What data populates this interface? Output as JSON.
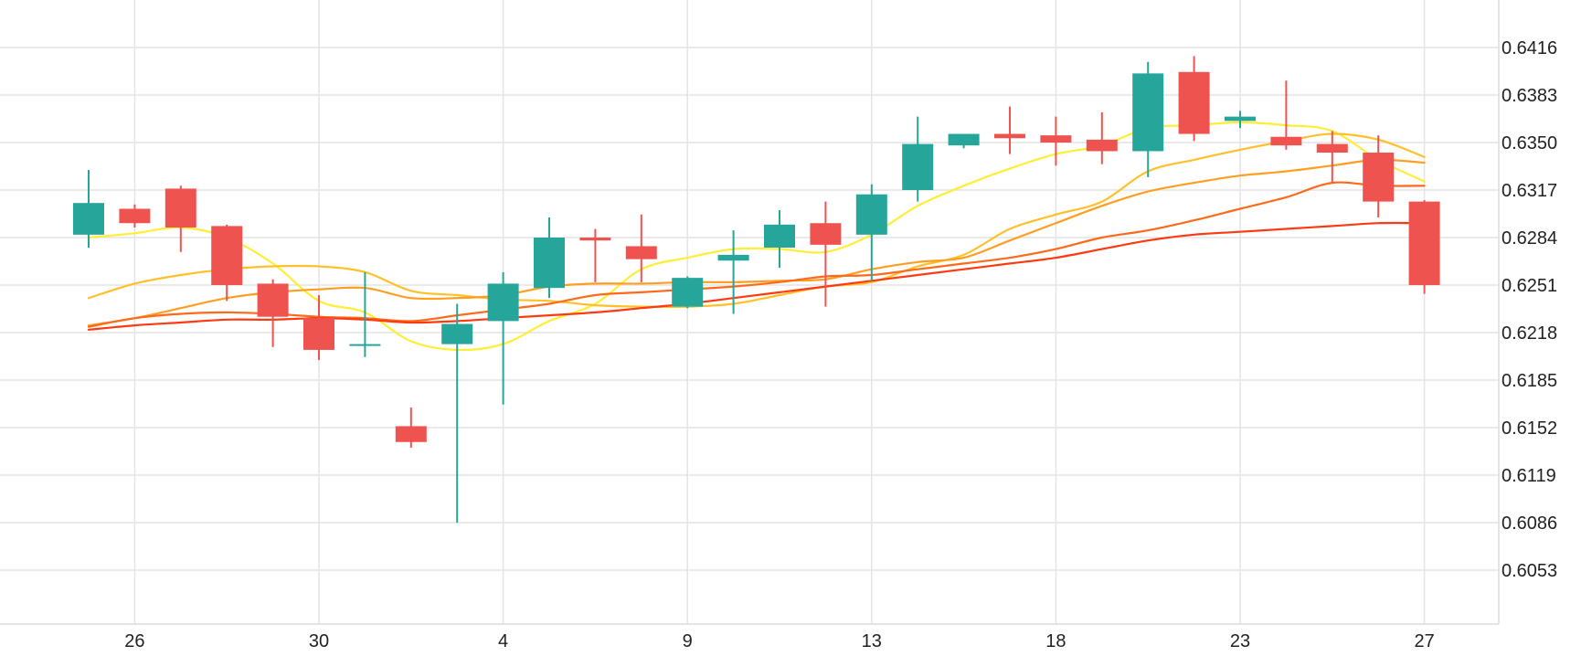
{
  "chart_data": {
    "type": "candlestick",
    "title": "",
    "xlabel": "",
    "ylabel": "",
    "ylim": [
      6010,
      6440
    ],
    "grid": true,
    "colors": {
      "up": "#26a69a",
      "down": "#ef5350",
      "grid": "#e4e4e4"
    },
    "x_ticks": [
      {
        "label": "26",
        "index": 1
      },
      {
        "label": "30",
        "index": 5
      },
      {
        "label": "4",
        "index": 9
      },
      {
        "label": "9",
        "index": 13
      },
      {
        "label": "13",
        "index": 17
      },
      {
        "label": "18",
        "index": 21
      },
      {
        "label": "23",
        "index": 25
      },
      {
        "label": "27",
        "index": 29
      }
    ],
    "y_ticks": [
      "0.6416",
      "0.6383",
      "0.6350",
      "0.6317",
      "0.6284",
      "0.6251",
      "0.6218",
      "0.6185",
      "0.6152",
      "0.6119",
      "0.6086",
      "0.6053"
    ],
    "candles": [
      {
        "o": 0.6286,
        "h": 0.6331,
        "l": 0.6277,
        "c": 0.6308
      },
      {
        "o": 0.6304,
        "h": 0.6307,
        "l": 0.6291,
        "c": 0.6294
      },
      {
        "o": 0.6318,
        "h": 0.632,
        "l": 0.6274,
        "c": 0.6291
      },
      {
        "o": 0.6292,
        "h": 0.6293,
        "l": 0.624,
        "c": 0.6251
      },
      {
        "o": 0.6252,
        "h": 0.6255,
        "l": 0.6208,
        "c": 0.6229
      },
      {
        "o": 0.6228,
        "h": 0.6244,
        "l": 0.6199,
        "c": 0.6206
      },
      {
        "o": 0.6209,
        "h": 0.626,
        "l": 0.6201,
        "c": 0.621
      },
      {
        "o": 0.6153,
        "h": 0.6166,
        "l": 0.6138,
        "c": 0.6142
      },
      {
        "o": 0.621,
        "h": 0.6238,
        "l": 0.6086,
        "c": 0.6224
      },
      {
        "o": 0.6226,
        "h": 0.626,
        "l": 0.6168,
        "c": 0.6252
      },
      {
        "o": 0.6249,
        "h": 0.6298,
        "l": 0.6242,
        "c": 0.6284
      },
      {
        "o": 0.6284,
        "h": 0.629,
        "l": 0.6253,
        "c": 0.6282
      },
      {
        "o": 0.6278,
        "h": 0.63,
        "l": 0.6253,
        "c": 0.6269
      },
      {
        "o": 0.6236,
        "h": 0.6257,
        "l": 0.6235,
        "c": 0.6256
      },
      {
        "o": 0.6268,
        "h": 0.6289,
        "l": 0.6231,
        "c": 0.6272
      },
      {
        "o": 0.6277,
        "h": 0.6303,
        "l": 0.6263,
        "c": 0.6293
      },
      {
        "o": 0.6294,
        "h": 0.6309,
        "l": 0.6236,
        "c": 0.6279
      },
      {
        "o": 0.6286,
        "h": 0.6321,
        "l": 0.6254,
        "c": 0.6314
      },
      {
        "o": 0.6317,
        "h": 0.6368,
        "l": 0.6309,
        "c": 0.6349
      },
      {
        "o": 0.6348,
        "h": 0.6356,
        "l": 0.6346,
        "c": 0.6356
      },
      {
        "o": 0.6356,
        "h": 0.6375,
        "l": 0.6342,
        "c": 0.6353
      },
      {
        "o": 0.6355,
        "h": 0.6368,
        "l": 0.6334,
        "c": 0.635
      },
      {
        "o": 0.6352,
        "h": 0.6371,
        "l": 0.6335,
        "c": 0.6344
      },
      {
        "o": 0.6344,
        "h": 0.6406,
        "l": 0.6326,
        "c": 0.6398
      },
      {
        "o": 0.6399,
        "h": 0.641,
        "l": 0.6351,
        "c": 0.6356
      },
      {
        "o": 0.6365,
        "h": 0.6372,
        "l": 0.636,
        "c": 0.6368
      },
      {
        "o": 0.6354,
        "h": 0.6393,
        "l": 0.6345,
        "c": 0.6348
      },
      {
        "o": 0.6349,
        "h": 0.6358,
        "l": 0.6322,
        "c": 0.6343
      },
      {
        "o": 0.6343,
        "h": 0.6355,
        "l": 0.6298,
        "c": 0.6309
      },
      {
        "o": 0.6309,
        "h": 0.631,
        "l": 0.6245,
        "c": 0.6251
      }
    ],
    "lines": [
      {
        "color": "#ffee33",
        "values": [
          0.6284,
          0.6287,
          0.6291,
          0.6284,
          0.6266,
          0.624,
          0.6232,
          0.6212,
          0.6206,
          0.621,
          0.6226,
          0.6238,
          0.6262,
          0.627,
          0.6276,
          0.6276,
          0.6274,
          0.6286,
          0.6306,
          0.632,
          0.6332,
          0.6342,
          0.6348,
          0.636,
          0.6362,
          0.6364,
          0.6362,
          0.6358,
          0.6338,
          0.6323
        ]
      },
      {
        "color": "#ffc02a",
        "values": [
          0.6242,
          0.6252,
          0.6258,
          0.6262,
          0.6264,
          0.6264,
          0.626,
          0.6247,
          0.6244,
          0.6241,
          0.624,
          0.6237,
          0.6236,
          0.6236,
          0.6238,
          0.6244,
          0.625,
          0.6253,
          0.6264,
          0.6272,
          0.629,
          0.63,
          0.6309,
          0.633,
          0.6338,
          0.6345,
          0.6351,
          0.6356,
          0.6352,
          0.634
        ]
      },
      {
        "color": "#ff9e20",
        "values": [
          0.6223,
          0.6228,
          0.6235,
          0.6242,
          0.6246,
          0.6248,
          0.6249,
          0.6242,
          0.6242,
          0.6244,
          0.625,
          0.6252,
          0.6252,
          0.6253,
          0.6253,
          0.6254,
          0.6255,
          0.6262,
          0.6267,
          0.627,
          0.6282,
          0.6294,
          0.6306,
          0.6316,
          0.6322,
          0.6327,
          0.633,
          0.6334,
          0.6338,
          0.6336
        ]
      },
      {
        "color": "#ff6a1a",
        "values": [
          0.6222,
          0.6228,
          0.6231,
          0.6232,
          0.6231,
          0.6229,
          0.6228,
          0.6226,
          0.623,
          0.6234,
          0.6238,
          0.6244,
          0.6246,
          0.6248,
          0.625,
          0.6253,
          0.6257,
          0.6258,
          0.6262,
          0.6266,
          0.627,
          0.6276,
          0.6284,
          0.6289,
          0.6296,
          0.6304,
          0.6312,
          0.6322,
          0.632,
          0.632
        ]
      },
      {
        "color": "#ff3a10",
        "values": [
          0.622,
          0.6223,
          0.6225,
          0.6227,
          0.6227,
          0.6228,
          0.6227,
          0.6225,
          0.6226,
          0.6228,
          0.623,
          0.6232,
          0.6235,
          0.6238,
          0.6242,
          0.6246,
          0.625,
          0.6254,
          0.6258,
          0.6262,
          0.6266,
          0.627,
          0.6276,
          0.6282,
          0.6286,
          0.6288,
          0.629,
          0.6292,
          0.6294,
          0.6294
        ]
      }
    ]
  }
}
